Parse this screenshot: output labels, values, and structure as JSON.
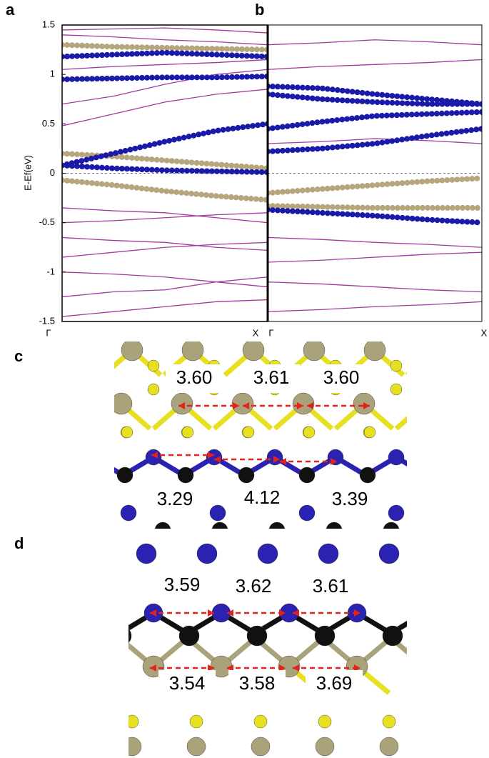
{
  "chart_data": [
    {
      "type": "line",
      "panel": "a",
      "ylabel": "E-Ef(eV)",
      "categories": [
        "Γ",
        null,
        null,
        null,
        "X"
      ],
      "ylim": [
        -1.5,
        1.5
      ],
      "yticks": [
        -1.5,
        -1,
        -0.5,
        0,
        0.5,
        1,
        1.5
      ],
      "fermi_line": 0,
      "series": [
        {
          "color": "#a23aa0",
          "style": "line",
          "values": [
            -1.45,
            -1.4,
            -1.35,
            -1.3,
            -1.28
          ]
        },
        {
          "color": "#a23aa0",
          "style": "line",
          "values": [
            -1.25,
            -1.2,
            -1.18,
            -1.1,
            -1.05
          ]
        },
        {
          "color": "#a23aa0",
          "style": "line",
          "values": [
            -1.0,
            -1.02,
            -1.05,
            -1.1,
            -1.15
          ]
        },
        {
          "color": "#a23aa0",
          "style": "line",
          "values": [
            -0.85,
            -0.8,
            -0.75,
            -0.72,
            -0.7
          ]
        },
        {
          "color": "#a23aa0",
          "style": "line",
          "values": [
            -0.65,
            -0.68,
            -0.7,
            -0.75,
            -0.78
          ]
        },
        {
          "color": "#a23aa0",
          "style": "line",
          "values": [
            -0.5,
            -0.48,
            -0.45,
            -0.42,
            -0.4
          ]
        },
        {
          "color": "#a23aa0",
          "style": "line",
          "values": [
            -0.35,
            -0.38,
            -0.4,
            -0.45,
            -0.5
          ]
        },
        {
          "color": "#a23aa0",
          "style": "line",
          "values": [
            0.48,
            0.6,
            0.72,
            0.8,
            0.85
          ]
        },
        {
          "color": "#a23aa0",
          "style": "line",
          "values": [
            0.7,
            0.78,
            0.9,
            1.0,
            1.05
          ]
        },
        {
          "color": "#a23aa0",
          "style": "line",
          "values": [
            1.05,
            1.08,
            1.1,
            1.12,
            1.15
          ]
        },
        {
          "color": "#a23aa0",
          "style": "line",
          "values": [
            1.4,
            1.38,
            1.35,
            1.33,
            1.3
          ]
        },
        {
          "color": "#a23aa0",
          "style": "line",
          "values": [
            1.45,
            1.46,
            1.47,
            1.45,
            1.42
          ]
        },
        {
          "color": "#b5a67e",
          "style": "dots",
          "values": [
            -0.07,
            -0.12,
            -0.18,
            -0.23,
            -0.27
          ]
        },
        {
          "color": "#b5a67e",
          "style": "dots",
          "values": [
            0.2,
            0.17,
            0.13,
            0.09,
            0.05
          ]
        },
        {
          "color": "#b5a67e",
          "style": "dots",
          "values": [
            1.3,
            1.28,
            1.27,
            1.26,
            1.25
          ]
        },
        {
          "color": "#1a1aa8",
          "style": "dots",
          "values": [
            0.08,
            0.2,
            0.32,
            0.43,
            0.5
          ]
        },
        {
          "color": "#1a1aa8",
          "style": "dots",
          "values": [
            0.08,
            0.05,
            0.03,
            0.02,
            0.01
          ]
        },
        {
          "color": "#1a1aa8",
          "style": "dots",
          "values": [
            0.95,
            0.96,
            0.97,
            0.97,
            0.98
          ]
        },
        {
          "color": "#1a1aa8",
          "style": "dots",
          "values": [
            1.18,
            1.2,
            1.22,
            1.2,
            1.18
          ]
        }
      ]
    },
    {
      "type": "line",
      "panel": "b",
      "categories": [
        "Γ",
        null,
        null,
        null,
        "X"
      ],
      "ylim": [
        -1.5,
        1.5
      ],
      "fermi_line": 0,
      "series": [
        {
          "color": "#a23aa0",
          "style": "line",
          "values": [
            -1.4,
            -1.38,
            -1.35,
            -1.33,
            -1.3
          ]
        },
        {
          "color": "#a23aa0",
          "style": "line",
          "values": [
            -1.1,
            -1.12,
            -1.15,
            -1.18,
            -1.2
          ]
        },
        {
          "color": "#a23aa0",
          "style": "line",
          "values": [
            -0.9,
            -0.88,
            -0.85,
            -0.82,
            -0.8
          ]
        },
        {
          "color": "#a23aa0",
          "style": "line",
          "values": [
            -0.65,
            -0.67,
            -0.7,
            -0.72,
            -0.75
          ]
        },
        {
          "color": "#a23aa0",
          "style": "line",
          "values": [
            0.3,
            0.32,
            0.35,
            0.33,
            0.3
          ]
        },
        {
          "color": "#a23aa0",
          "style": "line",
          "values": [
            1.05,
            1.08,
            1.1,
            1.12,
            1.15
          ]
        },
        {
          "color": "#a23aa0",
          "style": "line",
          "values": [
            1.3,
            1.32,
            1.35,
            1.33,
            1.3
          ]
        },
        {
          "color": "#b5a67e",
          "style": "dots",
          "values": [
            -0.2,
            -0.16,
            -0.12,
            -0.08,
            -0.05
          ]
        },
        {
          "color": "#b5a67e",
          "style": "dots",
          "values": [
            -0.33,
            -0.34,
            -0.35,
            -0.35,
            -0.35
          ]
        },
        {
          "color": "#1a1aa8",
          "style": "dots",
          "values": [
            -0.37,
            -0.4,
            -0.43,
            -0.47,
            -0.5
          ]
        },
        {
          "color": "#1a1aa8",
          "style": "dots",
          "values": [
            0.22,
            0.25,
            0.3,
            0.38,
            0.45
          ]
        },
        {
          "color": "#1a1aa8",
          "style": "dots",
          "values": [
            0.45,
            0.52,
            0.58,
            0.6,
            0.62
          ]
        },
        {
          "color": "#1a1aa8",
          "style": "dots",
          "values": [
            0.8,
            0.75,
            0.72,
            0.7,
            0.7
          ]
        },
        {
          "color": "#1a1aa8",
          "style": "dots",
          "values": [
            0.88,
            0.86,
            0.8,
            0.75,
            0.7
          ]
        }
      ]
    }
  ],
  "structures": [
    {
      "label": "c",
      "distances": [
        "3.60",
        "3.61",
        "3.60",
        "3.29",
        "4.12",
        "3.39"
      ]
    },
    {
      "label": "d",
      "distances": [
        "3.59",
        "3.62",
        "3.61",
        "3.54",
        "3.58",
        "3.69"
      ]
    }
  ]
}
